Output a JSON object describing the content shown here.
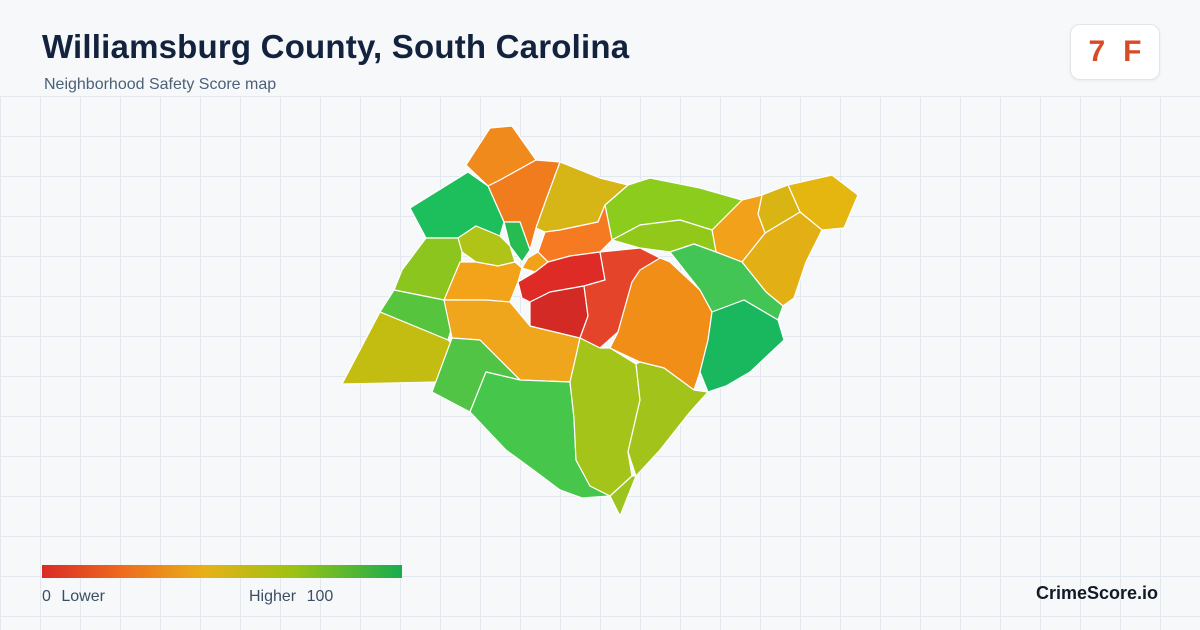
{
  "header": {
    "title": "Williamsburg County, South Carolina",
    "subtitle": "Neighborhood Safety Score map"
  },
  "score_badge": {
    "score": "7",
    "grade": "F",
    "color": "#d94a26"
  },
  "legend": {
    "min_value": "0",
    "min_label": "Lower",
    "max_label": "Higher",
    "max_value": "100",
    "colors": [
      "#d92b26",
      "#ee6a1e",
      "#e8b018",
      "#9cc213",
      "#17ad4e"
    ]
  },
  "brand": "CrimeScore.io",
  "map": {
    "regions_colors": {
      "north_orange": "#f08a1c",
      "north_mustard": "#d8b516",
      "west_green": "#1fbf5b",
      "center_red": "#dc2a26",
      "east_green": "#42c84a",
      "south_lime": "#a3c61a"
    }
  }
}
